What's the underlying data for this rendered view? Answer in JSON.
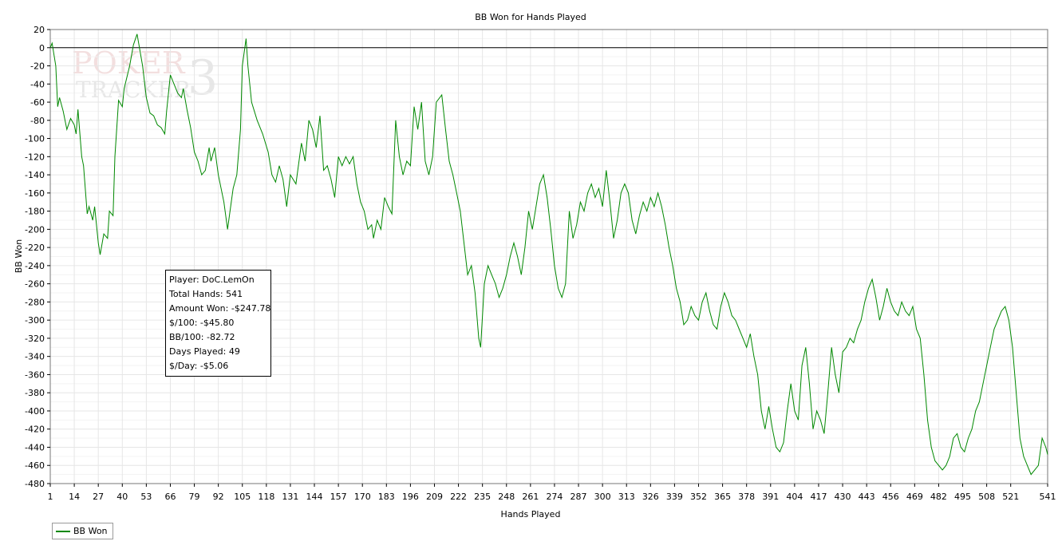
{
  "chart_data": {
    "type": "line",
    "title": "BB Won for Hands Played",
    "xlabel": "Hands Played",
    "ylabel": "BB Won",
    "xlim": [
      1,
      541
    ],
    "ylim": [
      -480,
      20
    ],
    "x_ticks": [
      1,
      14,
      27,
      40,
      53,
      66,
      79,
      92,
      105,
      118,
      131,
      144,
      157,
      170,
      183,
      196,
      209,
      222,
      235,
      248,
      261,
      274,
      287,
      300,
      313,
      326,
      339,
      352,
      365,
      378,
      391,
      404,
      417,
      430,
      443,
      456,
      469,
      482,
      495,
      508,
      521,
      541
    ],
    "y_ticks": [
      20,
      0,
      -20,
      -40,
      -60,
      -80,
      -100,
      -120,
      -140,
      -160,
      -180,
      -200,
      -220,
      -240,
      -260,
      -280,
      -300,
      -320,
      -340,
      -360,
      -380,
      -400,
      -420,
      -440,
      -460,
      -480
    ],
    "grid": true,
    "legend": "bottom-left",
    "series": [
      {
        "name": "BB Won",
        "color": "#008800",
        "points": [
          [
            1,
            0
          ],
          [
            2,
            5
          ],
          [
            4,
            -20
          ],
          [
            5,
            -65
          ],
          [
            6,
            -55
          ],
          [
            8,
            -70
          ],
          [
            10,
            -90
          ],
          [
            12,
            -78
          ],
          [
            14,
            -85
          ],
          [
            15,
            -95
          ],
          [
            16,
            -68
          ],
          [
            18,
            -120
          ],
          [
            19,
            -130
          ],
          [
            21,
            -183
          ],
          [
            22,
            -175
          ],
          [
            24,
            -190
          ],
          [
            25,
            -175
          ],
          [
            27,
            -215
          ],
          [
            28,
            -228
          ],
          [
            30,
            -205
          ],
          [
            32,
            -210
          ],
          [
            33,
            -180
          ],
          [
            35,
            -185
          ],
          [
            36,
            -120
          ],
          [
            38,
            -58
          ],
          [
            40,
            -65
          ],
          [
            41,
            -45
          ],
          [
            44,
            -20
          ],
          [
            46,
            3
          ],
          [
            48,
            15
          ],
          [
            51,
            -20
          ],
          [
            53,
            -55
          ],
          [
            55,
            -72
          ],
          [
            57,
            -75
          ],
          [
            59,
            -85
          ],
          [
            61,
            -88
          ],
          [
            63,
            -95
          ],
          [
            64,
            -70
          ],
          [
            66,
            -30
          ],
          [
            68,
            -40
          ],
          [
            70,
            -50
          ],
          [
            72,
            -55
          ],
          [
            73,
            -45
          ],
          [
            75,
            -68
          ],
          [
            77,
            -88
          ],
          [
            79,
            -115
          ],
          [
            81,
            -125
          ],
          [
            83,
            -140
          ],
          [
            85,
            -135
          ],
          [
            87,
            -110
          ],
          [
            88,
            -125
          ],
          [
            90,
            -110
          ],
          [
            92,
            -140
          ],
          [
            95,
            -170
          ],
          [
            97,
            -200
          ],
          [
            98,
            -185
          ],
          [
            100,
            -155
          ],
          [
            102,
            -140
          ],
          [
            104,
            -90
          ],
          [
            105,
            -20
          ],
          [
            107,
            10
          ],
          [
            108,
            -20
          ],
          [
            110,
            -60
          ],
          [
            113,
            -80
          ],
          [
            116,
            -95
          ],
          [
            119,
            -115
          ],
          [
            121,
            -140
          ],
          [
            123,
            -148
          ],
          [
            125,
            -130
          ],
          [
            127,
            -145
          ],
          [
            129,
            -175
          ],
          [
            131,
            -140
          ],
          [
            134,
            -150
          ],
          [
            137,
            -105
          ],
          [
            139,
            -125
          ],
          [
            141,
            -80
          ],
          [
            143,
            -90
          ],
          [
            145,
            -110
          ],
          [
            147,
            -75
          ],
          [
            149,
            -135
          ],
          [
            151,
            -130
          ],
          [
            153,
            -145
          ],
          [
            155,
            -165
          ],
          [
            157,
            -120
          ],
          [
            159,
            -130
          ],
          [
            161,
            -120
          ],
          [
            163,
            -128
          ],
          [
            165,
            -120
          ],
          [
            167,
            -150
          ],
          [
            169,
            -170
          ],
          [
            171,
            -180
          ],
          [
            173,
            -200
          ],
          [
            175,
            -195
          ],
          [
            176,
            -210
          ],
          [
            178,
            -190
          ],
          [
            180,
            -200
          ],
          [
            182,
            -165
          ],
          [
            184,
            -175
          ],
          [
            186,
            -183
          ],
          [
            188,
            -80
          ],
          [
            190,
            -120
          ],
          [
            192,
            -140
          ],
          [
            194,
            -125
          ],
          [
            196,
            -130
          ],
          [
            198,
            -65
          ],
          [
            200,
            -90
          ],
          [
            202,
            -60
          ],
          [
            204,
            -125
          ],
          [
            206,
            -140
          ],
          [
            208,
            -120
          ],
          [
            210,
            -60
          ],
          [
            213,
            -52
          ],
          [
            215,
            -90
          ],
          [
            217,
            -125
          ],
          [
            219,
            -140
          ],
          [
            221,
            -160
          ],
          [
            223,
            -180
          ],
          [
            225,
            -215
          ],
          [
            227,
            -250
          ],
          [
            229,
            -240
          ],
          [
            231,
            -270
          ],
          [
            233,
            -320
          ],
          [
            234,
            -330
          ],
          [
            236,
            -260
          ],
          [
            238,
            -240
          ],
          [
            240,
            -250
          ],
          [
            242,
            -260
          ],
          [
            244,
            -275
          ],
          [
            246,
            -265
          ],
          [
            248,
            -250
          ],
          [
            250,
            -230
          ],
          [
            252,
            -215
          ],
          [
            254,
            -230
          ],
          [
            256,
            -250
          ],
          [
            258,
            -220
          ],
          [
            260,
            -180
          ],
          [
            262,
            -200
          ],
          [
            264,
            -175
          ],
          [
            266,
            -150
          ],
          [
            268,
            -140
          ],
          [
            270,
            -165
          ],
          [
            272,
            -200
          ],
          [
            274,
            -240
          ],
          [
            276,
            -265
          ],
          [
            278,
            -275
          ],
          [
            280,
            -260
          ],
          [
            282,
            -180
          ],
          [
            284,
            -210
          ],
          [
            286,
            -195
          ],
          [
            288,
            -170
          ],
          [
            290,
            -180
          ],
          [
            292,
            -160
          ],
          [
            294,
            -150
          ],
          [
            296,
            -165
          ],
          [
            298,
            -155
          ],
          [
            300,
            -175
          ],
          [
            302,
            -135
          ],
          [
            304,
            -170
          ],
          [
            306,
            -210
          ],
          [
            308,
            -190
          ],
          [
            310,
            -160
          ],
          [
            312,
            -150
          ],
          [
            314,
            -160
          ],
          [
            316,
            -190
          ],
          [
            318,
            -205
          ],
          [
            320,
            -185
          ],
          [
            322,
            -170
          ],
          [
            324,
            -180
          ],
          [
            326,
            -165
          ],
          [
            328,
            -175
          ],
          [
            330,
            -160
          ],
          [
            332,
            -175
          ],
          [
            334,
            -195
          ],
          [
            336,
            -220
          ],
          [
            338,
            -240
          ],
          [
            340,
            -265
          ],
          [
            342,
            -280
          ],
          [
            344,
            -305
          ],
          [
            346,
            -300
          ],
          [
            348,
            -285
          ],
          [
            350,
            -295
          ],
          [
            352,
            -300
          ],
          [
            354,
            -280
          ],
          [
            356,
            -270
          ],
          [
            358,
            -290
          ],
          [
            360,
            -305
          ],
          [
            362,
            -310
          ],
          [
            364,
            -285
          ],
          [
            366,
            -270
          ],
          [
            368,
            -280
          ],
          [
            370,
            -295
          ],
          [
            372,
            -300
          ],
          [
            374,
            -310
          ],
          [
            376,
            -320
          ],
          [
            378,
            -330
          ],
          [
            380,
            -315
          ],
          [
            382,
            -340
          ],
          [
            384,
            -360
          ],
          [
            386,
            -400
          ],
          [
            388,
            -420
          ],
          [
            390,
            -395
          ],
          [
            392,
            -420
          ],
          [
            394,
            -440
          ],
          [
            396,
            -445
          ],
          [
            398,
            -435
          ],
          [
            400,
            -400
          ],
          [
            402,
            -370
          ],
          [
            404,
            -400
          ],
          [
            406,
            -410
          ],
          [
            408,
            -350
          ],
          [
            410,
            -330
          ],
          [
            412,
            -370
          ],
          [
            414,
            -420
          ],
          [
            416,
            -400
          ],
          [
            418,
            -410
          ],
          [
            420,
            -425
          ],
          [
            422,
            -380
          ],
          [
            424,
            -330
          ],
          [
            426,
            -360
          ],
          [
            428,
            -380
          ],
          [
            430,
            -335
          ],
          [
            432,
            -330
          ],
          [
            434,
            -320
          ],
          [
            436,
            -325
          ],
          [
            438,
            -310
          ],
          [
            440,
            -300
          ],
          [
            442,
            -280
          ],
          [
            444,
            -265
          ],
          [
            446,
            -255
          ],
          [
            448,
            -275
          ],
          [
            450,
            -300
          ],
          [
            452,
            -285
          ],
          [
            454,
            -265
          ],
          [
            456,
            -280
          ],
          [
            458,
            -290
          ],
          [
            460,
            -295
          ],
          [
            462,
            -280
          ],
          [
            464,
            -290
          ],
          [
            466,
            -295
          ],
          [
            468,
            -285
          ],
          [
            470,
            -310
          ],
          [
            472,
            -320
          ],
          [
            474,
            -360
          ],
          [
            476,
            -410
          ],
          [
            478,
            -440
          ],
          [
            480,
            -455
          ],
          [
            482,
            -460
          ],
          [
            484,
            -465
          ],
          [
            486,
            -460
          ],
          [
            488,
            -450
          ],
          [
            490,
            -430
          ],
          [
            492,
            -425
          ],
          [
            494,
            -440
          ],
          [
            496,
            -445
          ],
          [
            498,
            -430
          ],
          [
            500,
            -420
          ],
          [
            502,
            -400
          ],
          [
            504,
            -390
          ],
          [
            506,
            -370
          ],
          [
            508,
            -350
          ],
          [
            510,
            -330
          ],
          [
            512,
            -310
          ],
          [
            514,
            -300
          ],
          [
            516,
            -290
          ],
          [
            518,
            -285
          ],
          [
            520,
            -300
          ],
          [
            522,
            -330
          ],
          [
            524,
            -380
          ],
          [
            526,
            -430
          ],
          [
            528,
            -450
          ],
          [
            530,
            -460
          ],
          [
            532,
            -470
          ],
          [
            534,
            -465
          ],
          [
            536,
            -460
          ],
          [
            538,
            -430
          ],
          [
            540,
            -440
          ],
          [
            541,
            -448
          ]
        ]
      }
    ]
  },
  "stats": [
    "Player: DoC.LemOn",
    "Total Hands: 541",
    "Amount Won: -$247.78",
    "$/100: -$45.80",
    "BB/100: -82.72",
    "Days Played: 49",
    "$/Day: -$5.06"
  ],
  "watermark": {
    "line1": "POKER",
    "line2": "TRACKER",
    "mark": "3"
  }
}
